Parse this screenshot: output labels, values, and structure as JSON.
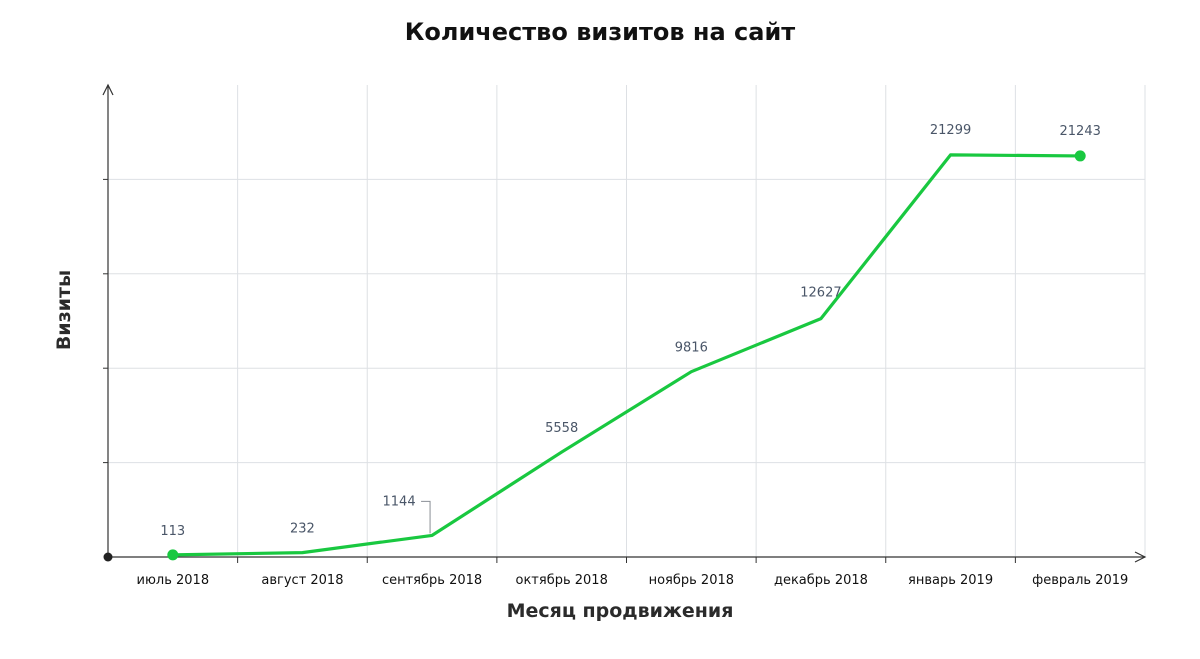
{
  "chart_data": {
    "type": "line",
    "title": "Количество визитов на сайт",
    "xlabel": "Месяц продвижения",
    "ylabel": "Визиты",
    "categories": [
      "июль 2018",
      "август 2018",
      "сентябрь 2018",
      "октябрь 2018",
      "ноябрь 2018",
      "декабрь 2018",
      "январь 2019",
      "февраль 2019"
    ],
    "series": [
      {
        "values": [
          113,
          232,
          1144,
          5558,
          9816,
          12627,
          21299,
          21243
        ],
        "color": "#19c840"
      }
    ],
    "data_labels": [
      "113",
      "232",
      "1144",
      "5558",
      "9816",
      "12627",
      "21299",
      "21243"
    ],
    "ylim": [
      0,
      25000
    ],
    "grid": true,
    "legend": "none"
  }
}
